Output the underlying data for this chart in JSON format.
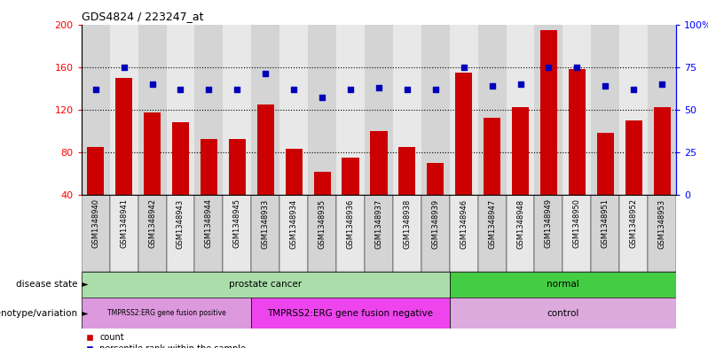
{
  "title": "GDS4824 / 223247_at",
  "samples": [
    "GSM1348940",
    "GSM1348941",
    "GSM1348942",
    "GSM1348943",
    "GSM1348944",
    "GSM1348945",
    "GSM1348933",
    "GSM1348934",
    "GSM1348935",
    "GSM1348936",
    "GSM1348937",
    "GSM1348938",
    "GSM1348939",
    "GSM1348946",
    "GSM1348947",
    "GSM1348948",
    "GSM1348949",
    "GSM1348950",
    "GSM1348951",
    "GSM1348952",
    "GSM1348953"
  ],
  "bar_values": [
    85,
    150,
    117,
    108,
    92,
    92,
    125,
    83,
    62,
    75,
    100,
    85,
    70,
    155,
    112,
    122,
    195,
    158,
    98,
    110,
    122
  ],
  "dot_values_pct": [
    62,
    75,
    65,
    62,
    62,
    62,
    71,
    62,
    57,
    62,
    63,
    62,
    62,
    75,
    64,
    65,
    75,
    75,
    64,
    62,
    65
  ],
  "ylim_left": [
    40,
    200
  ],
  "ylim_right": [
    0,
    100
  ],
  "yticks_left": [
    40,
    80,
    120,
    160,
    200
  ],
  "yticks_right": [
    0,
    25,
    50,
    75,
    100
  ],
  "ytick_labels_right": [
    "0",
    "25",
    "50",
    "75",
    "100%"
  ],
  "bar_color": "#cc0000",
  "dot_color": "#0000bb",
  "disease_state_groups": [
    {
      "label": "prostate cancer",
      "start": 0,
      "end": 12,
      "color": "#aaddaa"
    },
    {
      "label": "normal",
      "start": 13,
      "end": 20,
      "color": "#44cc44"
    }
  ],
  "genotype_groups": [
    {
      "label": "TMPRSS2:ERG gene fusion positive",
      "start": 0,
      "end": 5,
      "color": "#dd99dd"
    },
    {
      "label": "TMPRSS2:ERG gene fusion negative",
      "start": 6,
      "end": 12,
      "color": "#ee44ee"
    },
    {
      "label": "control",
      "start": 13,
      "end": 20,
      "color": "#ddaadd"
    }
  ],
  "disease_label": "disease state",
  "genotype_label": "genotype/variation",
  "col_bg_even": "#d4d4d4",
  "col_bg_odd": "#e8e8e8",
  "title_fontsize": 9,
  "tick_fontsize": 6,
  "annot_fontsize": 7.5,
  "label_fontsize": 7.5
}
